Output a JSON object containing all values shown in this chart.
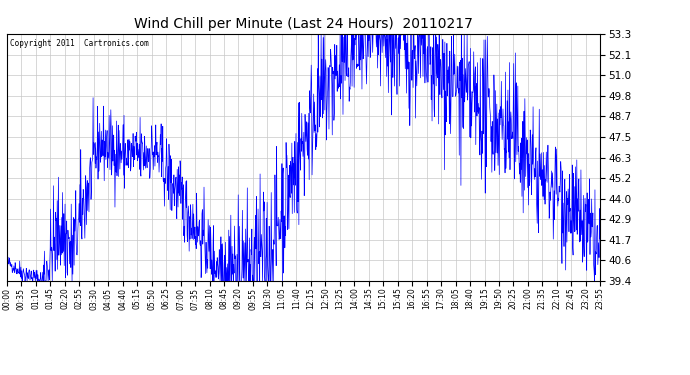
{
  "title": "Wind Chill per Minute (Last 24 Hours)  20110217",
  "copyright": "Copyright 2011  Cartronics.com",
  "line_color": "#0000FF",
  "bg_color": "#FFFFFF",
  "plot_bg_color": "#FFFFFF",
  "grid_color": "#C8C8C8",
  "yticks": [
    39.4,
    40.6,
    41.7,
    42.9,
    44.0,
    45.2,
    46.3,
    47.5,
    48.7,
    49.8,
    51.0,
    52.1,
    53.3
  ],
  "ymin": 39.4,
  "ymax": 53.3,
  "xtick_labels": [
    "00:00",
    "00:35",
    "01:10",
    "01:45",
    "02:20",
    "02:55",
    "03:30",
    "04:05",
    "04:40",
    "05:15",
    "05:50",
    "06:25",
    "07:00",
    "07:35",
    "08:10",
    "08:45",
    "09:20",
    "09:55",
    "10:30",
    "11:05",
    "11:40",
    "12:15",
    "12:50",
    "13:25",
    "14:00",
    "14:35",
    "15:10",
    "15:45",
    "16:20",
    "16:55",
    "17:30",
    "18:05",
    "18:40",
    "19:15",
    "19:50",
    "20:25",
    "21:00",
    "21:35",
    "22:10",
    "22:45",
    "23:20",
    "23:55"
  ]
}
